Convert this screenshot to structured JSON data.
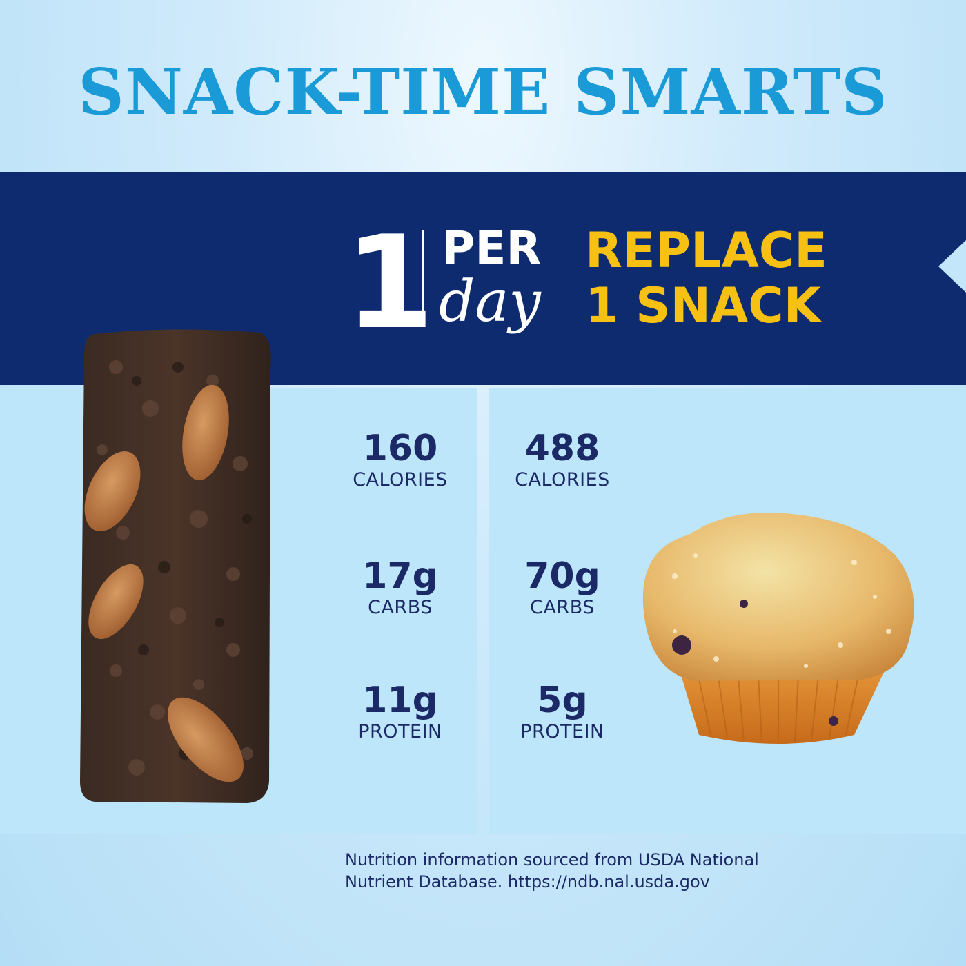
{
  "header": {
    "title": "SNACK-TIME SMARTS"
  },
  "banner": {
    "number": "1",
    "per": "PER",
    "day": "day",
    "line1": "REPLACE",
    "line2": "1 SNACK"
  },
  "comparison": {
    "bar": [
      {
        "value": "160",
        "label": "CALORIES"
      },
      {
        "value": "17g",
        "label": "CARBS"
      },
      {
        "value": "11g",
        "label": "PROTEIN"
      }
    ],
    "muffin": [
      {
        "value": "488",
        "label": "CALORIES"
      },
      {
        "value": "70g",
        "label": "CARBS"
      },
      {
        "value": "5g",
        "label": "PROTEIN"
      }
    ]
  },
  "images": {
    "bar": "chocolate almond snack bar",
    "muffin": "blueberry muffin"
  },
  "footnote": {
    "line1": "Nutrition information sourced from USDA National",
    "line2": "Nutrient Database. https://ndb.nal.usda.gov"
  },
  "colors": {
    "title": "#1a9ad7",
    "banner": "#0f2b70",
    "accent": "#f7c113",
    "text": "#1b2a66",
    "panel": "#bde6fa"
  }
}
